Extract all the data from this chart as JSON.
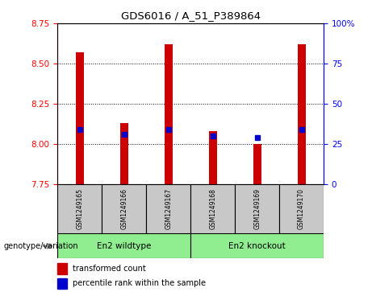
{
  "title": "GDS6016 / A_51_P389864",
  "samples": [
    "GSM1249165",
    "GSM1249166",
    "GSM1249167",
    "GSM1249168",
    "GSM1249169",
    "GSM1249170"
  ],
  "transformed_counts": [
    8.57,
    8.13,
    8.62,
    8.08,
    8.0,
    8.62
  ],
  "percentile_ranks": [
    8.09,
    8.06,
    8.09,
    8.05,
    8.04,
    8.09
  ],
  "y_min": 7.75,
  "y_max": 8.75,
  "y_ticks": [
    7.75,
    8.0,
    8.25,
    8.5,
    8.75
  ],
  "y_right_ticks": [
    0,
    25,
    50,
    75,
    100
  ],
  "bar_color": "#CC0000",
  "percentile_color": "#0000CC",
  "background_plot": "#FFFFFF",
  "background_label": "#C8C8C8",
  "group1_label": "En2 wildtype",
  "group2_label": "En2 knockout",
  "group_color": "#90EE90",
  "group_label_text": "genotype/variation",
  "legend1": "transformed count",
  "legend2": "percentile rank within the sample"
}
